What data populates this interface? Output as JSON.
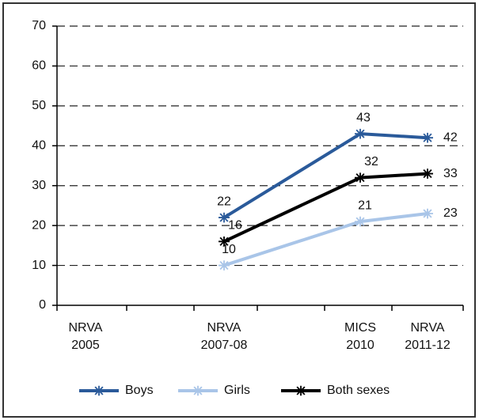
{
  "chart_data": {
    "type": "line",
    "categories": [
      "NRVA 2005",
      "NRVA 2007-08",
      "MICS 2010",
      "NRVA 2011-12"
    ],
    "series": [
      {
        "name": "Boys",
        "color": "#2a5a9a",
        "values": [
          null,
          22,
          43,
          42
        ]
      },
      {
        "name": "Girls",
        "color": "#a9c5e8",
        "values": [
          null,
          10,
          21,
          23
        ]
      },
      {
        "name": "Both sexes",
        "color": "#000000",
        "values": [
          null,
          16,
          32,
          33
        ]
      }
    ],
    "ylim": [
      0,
      70
    ],
    "yticks": [
      0,
      10,
      20,
      30,
      40,
      50,
      60,
      70
    ],
    "grid": true,
    "legend": "bottom"
  }
}
